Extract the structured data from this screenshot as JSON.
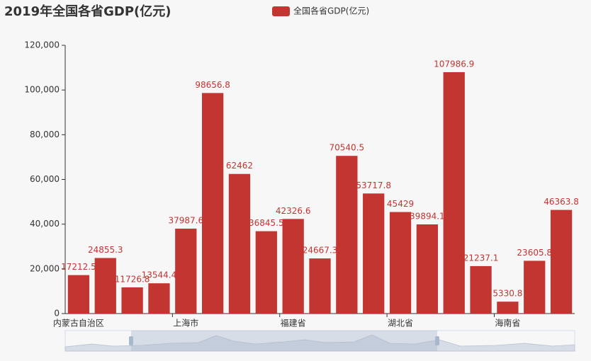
{
  "chart_data": {
    "type": "bar",
    "title": "2019年全国各省GDP(亿元)",
    "legend": "全国各省GDP(亿元)",
    "categories": [
      "内蒙古自治区",
      null,
      null,
      null,
      "上海市",
      null,
      null,
      null,
      "福建省",
      null,
      null,
      null,
      "湖北省",
      null,
      null,
      null,
      "海南省",
      null,
      null
    ],
    "values": [
      17212.5,
      24855.3,
      11726.8,
      13544.4,
      37987.6,
      98656.8,
      62462,
      36845.5,
      42326.6,
      24667.3,
      70540.5,
      53717.8,
      45429,
      39894.1,
      107986.9,
      21237.1,
      5330.8,
      23605.8,
      46363.8
    ],
    "color": "#c23531",
    "ylim": [
      0,
      120000
    ],
    "yticks": [
      0,
      {
        "value": 20000,
        "label": "20,000"
      },
      {
        "value": 40000,
        "label": "40,000"
      },
      {
        "value": 60000,
        "label": "60,000"
      },
      {
        "value": 80000,
        "label": "80,000"
      },
      {
        "value": 100000,
        "label": "100,000"
      },
      {
        "value": 120000,
        "label": "120,000"
      }
    ],
    "grid": false
  }
}
